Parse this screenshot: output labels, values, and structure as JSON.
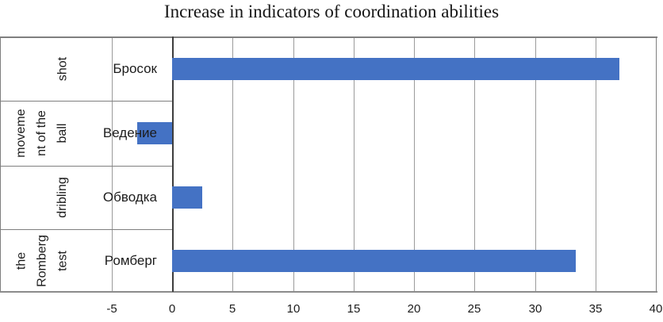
{
  "chart_data": {
    "type": "bar",
    "orientation": "horizontal",
    "title": "Increase in indicators of coordination abilities",
    "categories": [
      "Бросок",
      "Ведение",
      "Обводка",
      "Ромберг"
    ],
    "group_labels": [
      {
        "text": "shot",
        "lines": [
          "shot"
        ]
      },
      {
        "text": "movement of the ball",
        "lines": [
          "moveme",
          "nt of the",
          "ball"
        ]
      },
      {
        "text": "dribling",
        "lines": [
          "dribling"
        ]
      },
      {
        "text": "the Romberg test",
        "lines": [
          "the",
          "Romberg",
          "test"
        ]
      }
    ],
    "values": [
      37.0,
      -2.9,
      2.5,
      33.4
    ],
    "xlabel": "",
    "ylabel": "",
    "xlim": [
      -5,
      40
    ],
    "xticks": [
      -5,
      0,
      5,
      10,
      15,
      20,
      25,
      30,
      35,
      40
    ],
    "grid": "vertical-only",
    "legend_position": "none",
    "bar_color": "#4472C4",
    "gridline_color": "#9b9b9b",
    "frame_color": "#7f7f7f",
    "zero_line_color": "#3d3d3d",
    "axis_line_color": "#8c8c8c",
    "text_color": "#1c1c1c",
    "background_color": "#ffffff"
  }
}
